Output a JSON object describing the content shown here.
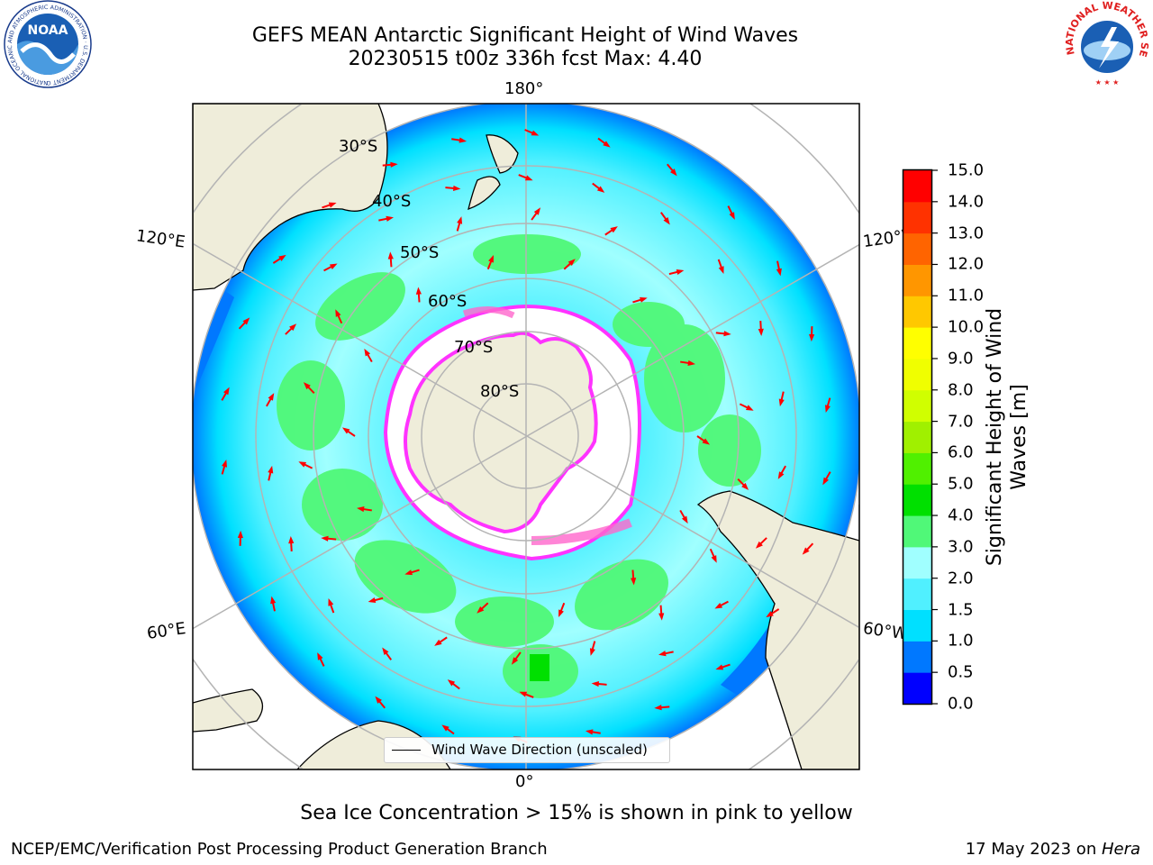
{
  "header": {
    "title_line1": "GEFS MEAN Antarctic Significant Height of Wind Waves",
    "title_line2": "20230515 t00z 336h fcst   Max: 4.40"
  },
  "logos": {
    "noaa_text": "NOAA",
    "noaa_ring_text": "NATIONAL OCEANIC AND ATMOSPHERIC ADMINISTRATION · U.S. DEPARTMENT OF COMMERCE",
    "nws_ring_text": "NATIONAL WEATHER SERVICE"
  },
  "map": {
    "projection": "south-polar-stereographic",
    "longitude_labels": {
      "top": "180°",
      "bottom": "0°",
      "left_upper": "120°E",
      "left_lower": "60°E",
      "right_upper": "120°W",
      "right_lower": "60°W"
    },
    "latitude_labels": [
      "30°S",
      "40°S",
      "50°S",
      "60°S",
      "70°S",
      "80°S"
    ],
    "legend_label": "Wind Wave Direction (unscaled)",
    "colors": {
      "land": "#efedda",
      "ocean_missing": "#ffffff",
      "arrow": "#ff0000",
      "grid": "#b4b4b4",
      "ice_edge": "#ff33ff"
    }
  },
  "colorbar": {
    "title": "Significant Height of Wind Waves [m]",
    "ticks": [
      "0.0",
      "0.5",
      "1.0",
      "1.5",
      "2.0",
      "3.0",
      "4.0",
      "5.0",
      "6.0",
      "7.0",
      "8.0",
      "9.0",
      "10.0",
      "11.0",
      "12.0",
      "13.0",
      "14.0",
      "15.0"
    ],
    "colors": [
      "#0000ff",
      "#0078ff",
      "#00e0ff",
      "#50f0ff",
      "#a0ffff",
      "#50f878",
      "#00e000",
      "#50f000",
      "#a0f000",
      "#d0ff00",
      "#f0ff00",
      "#ffff00",
      "#ffc800",
      "#ff9600",
      "#ff6400",
      "#ff3200",
      "#ff0000"
    ]
  },
  "footer": {
    "note": "Sea Ice Concentration > 15% is shown in pink to yellow",
    "org": "NCEP/EMC/Verification Post Processing Product Generation Branch",
    "date_prefix": "17 May 2023 on ",
    "machine": "Hera"
  }
}
